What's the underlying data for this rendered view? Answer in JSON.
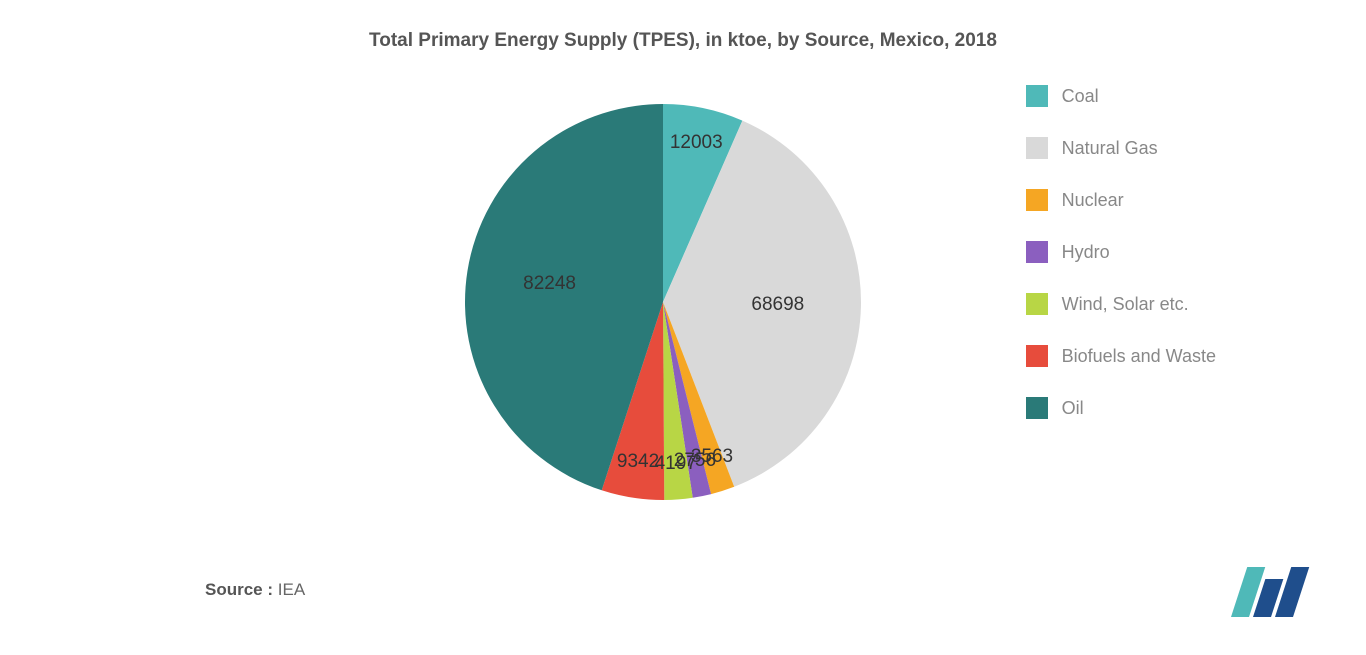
{
  "chart": {
    "type": "pie",
    "title": "Total Primary Energy Supply (TPES), in ktoe, by Source, Mexico, 2018",
    "title_fontsize": 19,
    "title_color": "#555555",
    "background_color": "#ffffff",
    "radius": 198,
    "label_fontsize": 19,
    "label_color": "#333333",
    "slices": [
      {
        "name": "Coal",
        "value": 12003,
        "color": "#4fb9b8"
      },
      {
        "name": "Natural Gas",
        "value": 68698,
        "color": "#d9d9d9"
      },
      {
        "name": "Nuclear",
        "value": 3563,
        "color": "#f5a623"
      },
      {
        "name": "Hydro",
        "value": 2756,
        "color": "#8b5fbf"
      },
      {
        "name": "Wind, Solar etc.",
        "value": 4197,
        "color": "#b8d645"
      },
      {
        "name": "Biofuels and Waste",
        "value": 9342,
        "color": "#e74c3c"
      },
      {
        "name": "Oil",
        "value": 82248,
        "color": "#2a7a78"
      }
    ],
    "legend_fontsize": 18,
    "legend_color": "#888888",
    "legend_swatch_size": 22
  },
  "source": {
    "label": "Source :",
    "value": "IEA"
  },
  "logo": {
    "bar1_color": "#4fb9b8",
    "bar2_color": "#1f4e8c",
    "bar3_color": "#1f4e8c"
  }
}
